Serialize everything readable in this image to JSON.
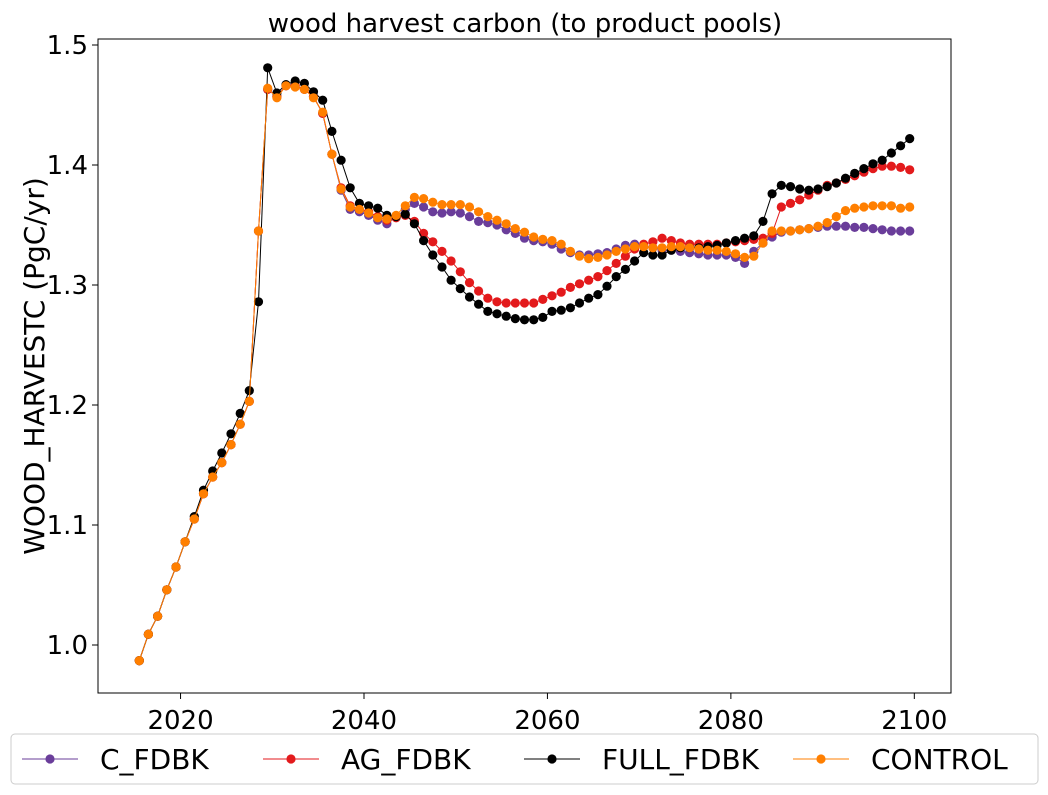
{
  "chart_data": {
    "type": "line",
    "title": "wood harvest carbon (to product pools)",
    "xlabel": "",
    "ylabel": "WOOD_HARVESTC (PgC/yr)",
    "xlim": [
      2011,
      2104
    ],
    "ylim": [
      0.96,
      1.505
    ],
    "xticks": [
      2020,
      2040,
      2060,
      2080,
      2100
    ],
    "xtick_labels": [
      "2020",
      "2040",
      "2060",
      "2080",
      "2100"
    ],
    "yticks": [
      1.0,
      1.1,
      1.2,
      1.3,
      1.4,
      1.5
    ],
    "ytick_labels": [
      "1.0",
      "1.1",
      "1.2",
      "1.3",
      "1.4",
      "1.5"
    ],
    "grid": false,
    "legend_position": "bottom-center",
    "x_start": 2015.5,
    "x_step": 1,
    "series": [
      {
        "name": "C_FDBK",
        "color": "#6a3d9a",
        "values": [
          0.987,
          1.009,
          1.024,
          1.046,
          1.065,
          1.086,
          1.105,
          1.126,
          1.14,
          1.152,
          1.167,
          1.184,
          1.203,
          1.345,
          1.463,
          1.457,
          1.466,
          1.466,
          1.463,
          1.457,
          1.443,
          1.409,
          1.379,
          1.363,
          1.361,
          1.358,
          1.354,
          1.351,
          1.357,
          1.363,
          1.368,
          1.365,
          1.361,
          1.36,
          1.361,
          1.36,
          1.357,
          1.353,
          1.352,
          1.35,
          1.346,
          1.343,
          1.339,
          1.337,
          1.336,
          1.334,
          1.33,
          1.327,
          1.325,
          1.325,
          1.326,
          1.327,
          1.33,
          1.333,
          1.334,
          1.332,
          1.331,
          1.329,
          1.329,
          1.328,
          1.327,
          1.326,
          1.325,
          1.325,
          1.325,
          1.323,
          1.318,
          1.328,
          1.335,
          1.34,
          1.344,
          1.345,
          1.346,
          1.347,
          1.348,
          1.349,
          1.349,
          1.349,
          1.348,
          1.348,
          1.347,
          1.346,
          1.345,
          1.345,
          1.345
        ]
      },
      {
        "name": "AG_FDBK",
        "color": "#e31a1c",
        "values": [
          0.987,
          1.009,
          1.024,
          1.046,
          1.065,
          1.086,
          1.105,
          1.126,
          1.14,
          1.152,
          1.167,
          1.184,
          1.203,
          1.345,
          1.463,
          1.457,
          1.466,
          1.466,
          1.463,
          1.457,
          1.443,
          1.409,
          1.381,
          1.366,
          1.363,
          1.361,
          1.357,
          1.354,
          1.356,
          1.358,
          1.353,
          1.343,
          1.336,
          1.328,
          1.32,
          1.311,
          1.302,
          1.295,
          1.289,
          1.286,
          1.285,
          1.285,
          1.285,
          1.285,
          1.288,
          1.291,
          1.294,
          1.298,
          1.301,
          1.304,
          1.307,
          1.312,
          1.318,
          1.324,
          1.33,
          1.334,
          1.336,
          1.339,
          1.337,
          1.335,
          1.334,
          1.334,
          1.334,
          1.334,
          1.335,
          1.336,
          1.337,
          1.338,
          1.339,
          1.343,
          1.365,
          1.368,
          1.371,
          1.375,
          1.379,
          1.383,
          1.385,
          1.388,
          1.391,
          1.394,
          1.397,
          1.399,
          1.399,
          1.398,
          1.396
        ]
      },
      {
        "name": "FULL_FDBK",
        "color": "#000000",
        "values": [
          0.987,
          1.009,
          1.024,
          1.046,
          1.065,
          1.086,
          1.107,
          1.129,
          1.145,
          1.16,
          1.176,
          1.193,
          1.212,
          1.286,
          1.481,
          1.46,
          1.467,
          1.47,
          1.468,
          1.461,
          1.454,
          1.428,
          1.404,
          1.381,
          1.368,
          1.366,
          1.364,
          1.358,
          1.357,
          1.359,
          1.351,
          1.337,
          1.325,
          1.315,
          1.304,
          1.297,
          1.29,
          1.284,
          1.278,
          1.276,
          1.274,
          1.272,
          1.271,
          1.271,
          1.273,
          1.278,
          1.279,
          1.281,
          1.285,
          1.289,
          1.292,
          1.299,
          1.307,
          1.313,
          1.32,
          1.327,
          1.325,
          1.325,
          1.329,
          1.331,
          1.331,
          1.331,
          1.332,
          1.333,
          1.335,
          1.337,
          1.339,
          1.341,
          1.353,
          1.376,
          1.383,
          1.382,
          1.38,
          1.379,
          1.38,
          1.382,
          1.385,
          1.389,
          1.393,
          1.397,
          1.401,
          1.404,
          1.41,
          1.416,
          1.422
        ]
      },
      {
        "name": "CONTROL",
        "color": "#ff7f00",
        "values": [
          0.987,
          1.009,
          1.024,
          1.046,
          1.065,
          1.086,
          1.105,
          1.126,
          1.14,
          1.152,
          1.167,
          1.184,
          1.203,
          1.345,
          1.464,
          1.456,
          1.466,
          1.465,
          1.463,
          1.456,
          1.444,
          1.409,
          1.38,
          1.365,
          1.363,
          1.36,
          1.356,
          1.355,
          1.358,
          1.366,
          1.373,
          1.372,
          1.369,
          1.367,
          1.367,
          1.367,
          1.365,
          1.361,
          1.357,
          1.354,
          1.351,
          1.347,
          1.344,
          1.34,
          1.338,
          1.337,
          1.334,
          1.328,
          1.324,
          1.322,
          1.323,
          1.325,
          1.328,
          1.33,
          1.332,
          1.332,
          1.331,
          1.331,
          1.332,
          1.332,
          1.331,
          1.33,
          1.329,
          1.329,
          1.328,
          1.326,
          1.323,
          1.324,
          1.335,
          1.345,
          1.345,
          1.345,
          1.346,
          1.347,
          1.349,
          1.352,
          1.357,
          1.362,
          1.364,
          1.365,
          1.366,
          1.366,
          1.366,
          1.364,
          1.365
        ]
      }
    ]
  }
}
